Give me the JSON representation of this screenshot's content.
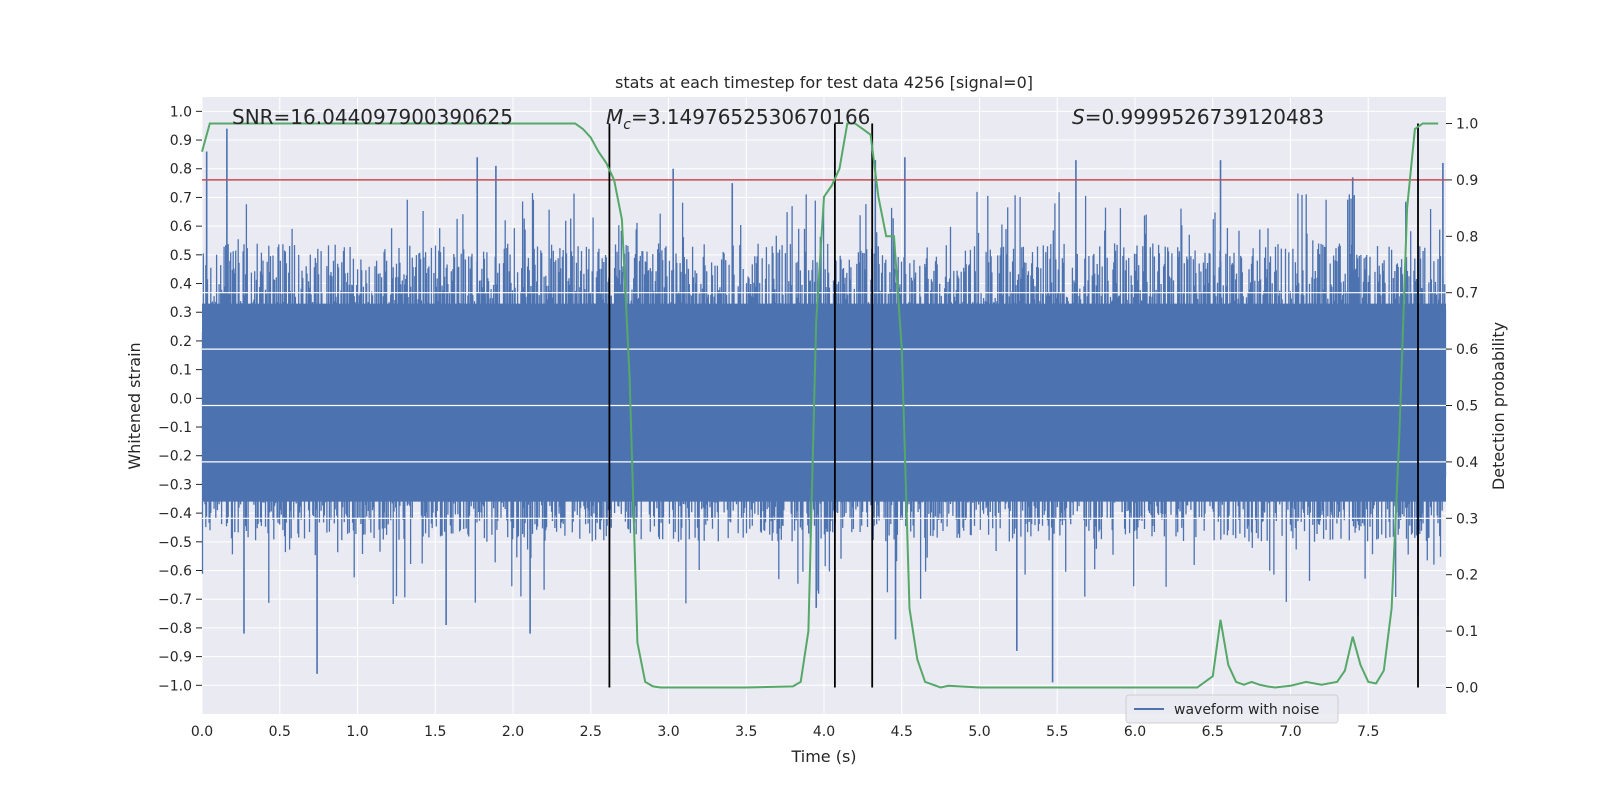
{
  "chart_data": {
    "type": "line",
    "title": "stats at each timestep for test data 4256 [signal=0]",
    "xlabel": "Time (s)",
    "ylabel": "Whitened strain",
    "y2label": "Detection probability",
    "xlim": [
      0.0,
      8.0
    ],
    "ylim": [
      -1.1,
      1.05
    ],
    "y2lim": [
      -0.047,
      1.047
    ],
    "xticks": [
      "0.0",
      "0.5",
      "1.0",
      "1.5",
      "2.0",
      "2.5",
      "3.0",
      "3.5",
      "4.0",
      "4.5",
      "5.0",
      "5.5",
      "6.0",
      "6.5",
      "7.0",
      "7.5"
    ],
    "yticks": [
      "1.0",
      "0.9",
      "0.8",
      "0.7",
      "0.6",
      "0.5",
      "0.4",
      "0.3",
      "0.2",
      "0.1",
      "0.0",
      "-0.1",
      "-0.2",
      "-0.3",
      "-0.4",
      "-0.5",
      "-0.6",
      "-0.7",
      "-0.8",
      "-0.9",
      "-1.0"
    ],
    "y2ticks": [
      "1.0",
      "0.9",
      "0.8",
      "0.7",
      "0.6",
      "0.5",
      "0.4",
      "0.3",
      "0.2",
      "0.1",
      "0.0"
    ],
    "annotations": {
      "snr": "SNR=16.044097900390625",
      "mc_symbol": "M",
      "mc_sub": "c",
      "mc_value": "=3.1497652530670166",
      "s_symbol": "S",
      "s_value": "=0.9999526739120483"
    },
    "threshold": {
      "y2": 0.9,
      "color": "#c44e52"
    },
    "vertical_lines": [
      2.62,
      4.07,
      4.31,
      7.82
    ],
    "waveform": {
      "name": "waveform with noise",
      "color": "#4c72b0",
      "envelope_note": "dense noise, typical range -0.6 to 0.7, spikes to +0.94 and -0.99",
      "spikes": [
        [
          0.03,
          0.86
        ],
        [
          0.16,
          0.94
        ],
        [
          0.74,
          -0.96
        ],
        [
          1.77,
          0.84
        ],
        [
          1.89,
          0.81
        ],
        [
          1.57,
          -0.79
        ],
        [
          3.03,
          0.8
        ],
        [
          3.41,
          0.75
        ],
        [
          4.33,
          0.83
        ],
        [
          4.52,
          0.84
        ],
        [
          5.47,
          -0.99
        ],
        [
          5.62,
          0.83
        ],
        [
          6.55,
          0.83
        ],
        [
          7.4,
          0.77
        ],
        [
          7.98,
          0.82
        ],
        [
          0.27,
          -0.82
        ],
        [
          2.11,
          -0.82
        ],
        [
          2.62,
          -0.76
        ],
        [
          4.46,
          -0.84
        ],
        [
          5.24,
          -0.88
        ],
        [
          3.95,
          -0.73
        ],
        [
          7.82,
          -0.76
        ]
      ]
    },
    "probability": {
      "name": "detection probability",
      "color": "#55a868",
      "x": [
        0.0,
        0.05,
        0.1,
        2.4,
        2.45,
        2.5,
        2.55,
        2.6,
        2.65,
        2.7,
        2.75,
        2.8,
        2.85,
        2.9,
        2.95,
        3.0,
        3.5,
        3.8,
        3.85,
        3.9,
        3.95,
        4.0,
        4.05,
        4.1,
        4.15,
        4.2,
        4.25,
        4.3,
        4.35,
        4.4,
        4.45,
        4.5,
        4.55,
        4.6,
        4.65,
        4.7,
        4.75,
        4.8,
        5.0,
        5.5,
        6.0,
        6.4,
        6.5,
        6.55,
        6.6,
        6.65,
        6.7,
        6.75,
        6.8,
        6.85,
        6.9,
        7.0,
        7.1,
        7.2,
        7.3,
        7.35,
        7.4,
        7.45,
        7.5,
        7.55,
        7.6,
        7.65,
        7.7,
        7.75,
        7.8,
        7.85,
        7.9,
        7.95
      ],
      "y": [
        0.95,
        1.0,
        1.0,
        1.0,
        0.99,
        0.975,
        0.95,
        0.93,
        0.9,
        0.83,
        0.55,
        0.08,
        0.01,
        0.002,
        0.0,
        0.0,
        0.0,
        0.002,
        0.01,
        0.1,
        0.65,
        0.87,
        0.89,
        0.92,
        1.0,
        1.0,
        0.99,
        0.98,
        0.87,
        0.8,
        0.8,
        0.6,
        0.14,
        0.05,
        0.01,
        0.005,
        0.0,
        0.003,
        0.0,
        0.0,
        0.0,
        0.0,
        0.02,
        0.12,
        0.04,
        0.01,
        0.005,
        0.01,
        0.005,
        0.002,
        0.0,
        0.003,
        0.01,
        0.005,
        0.01,
        0.03,
        0.09,
        0.04,
        0.01,
        0.007,
        0.03,
        0.14,
        0.45,
        0.85,
        0.99,
        1.0,
        1.0,
        1.0
      ]
    },
    "legend": {
      "position": "lower-right",
      "entries": [
        "waveform with noise"
      ]
    },
    "grid": true,
    "style": {
      "face": "#eaeaf2",
      "grid": "#ffffff",
      "vline": "#000000"
    }
  }
}
